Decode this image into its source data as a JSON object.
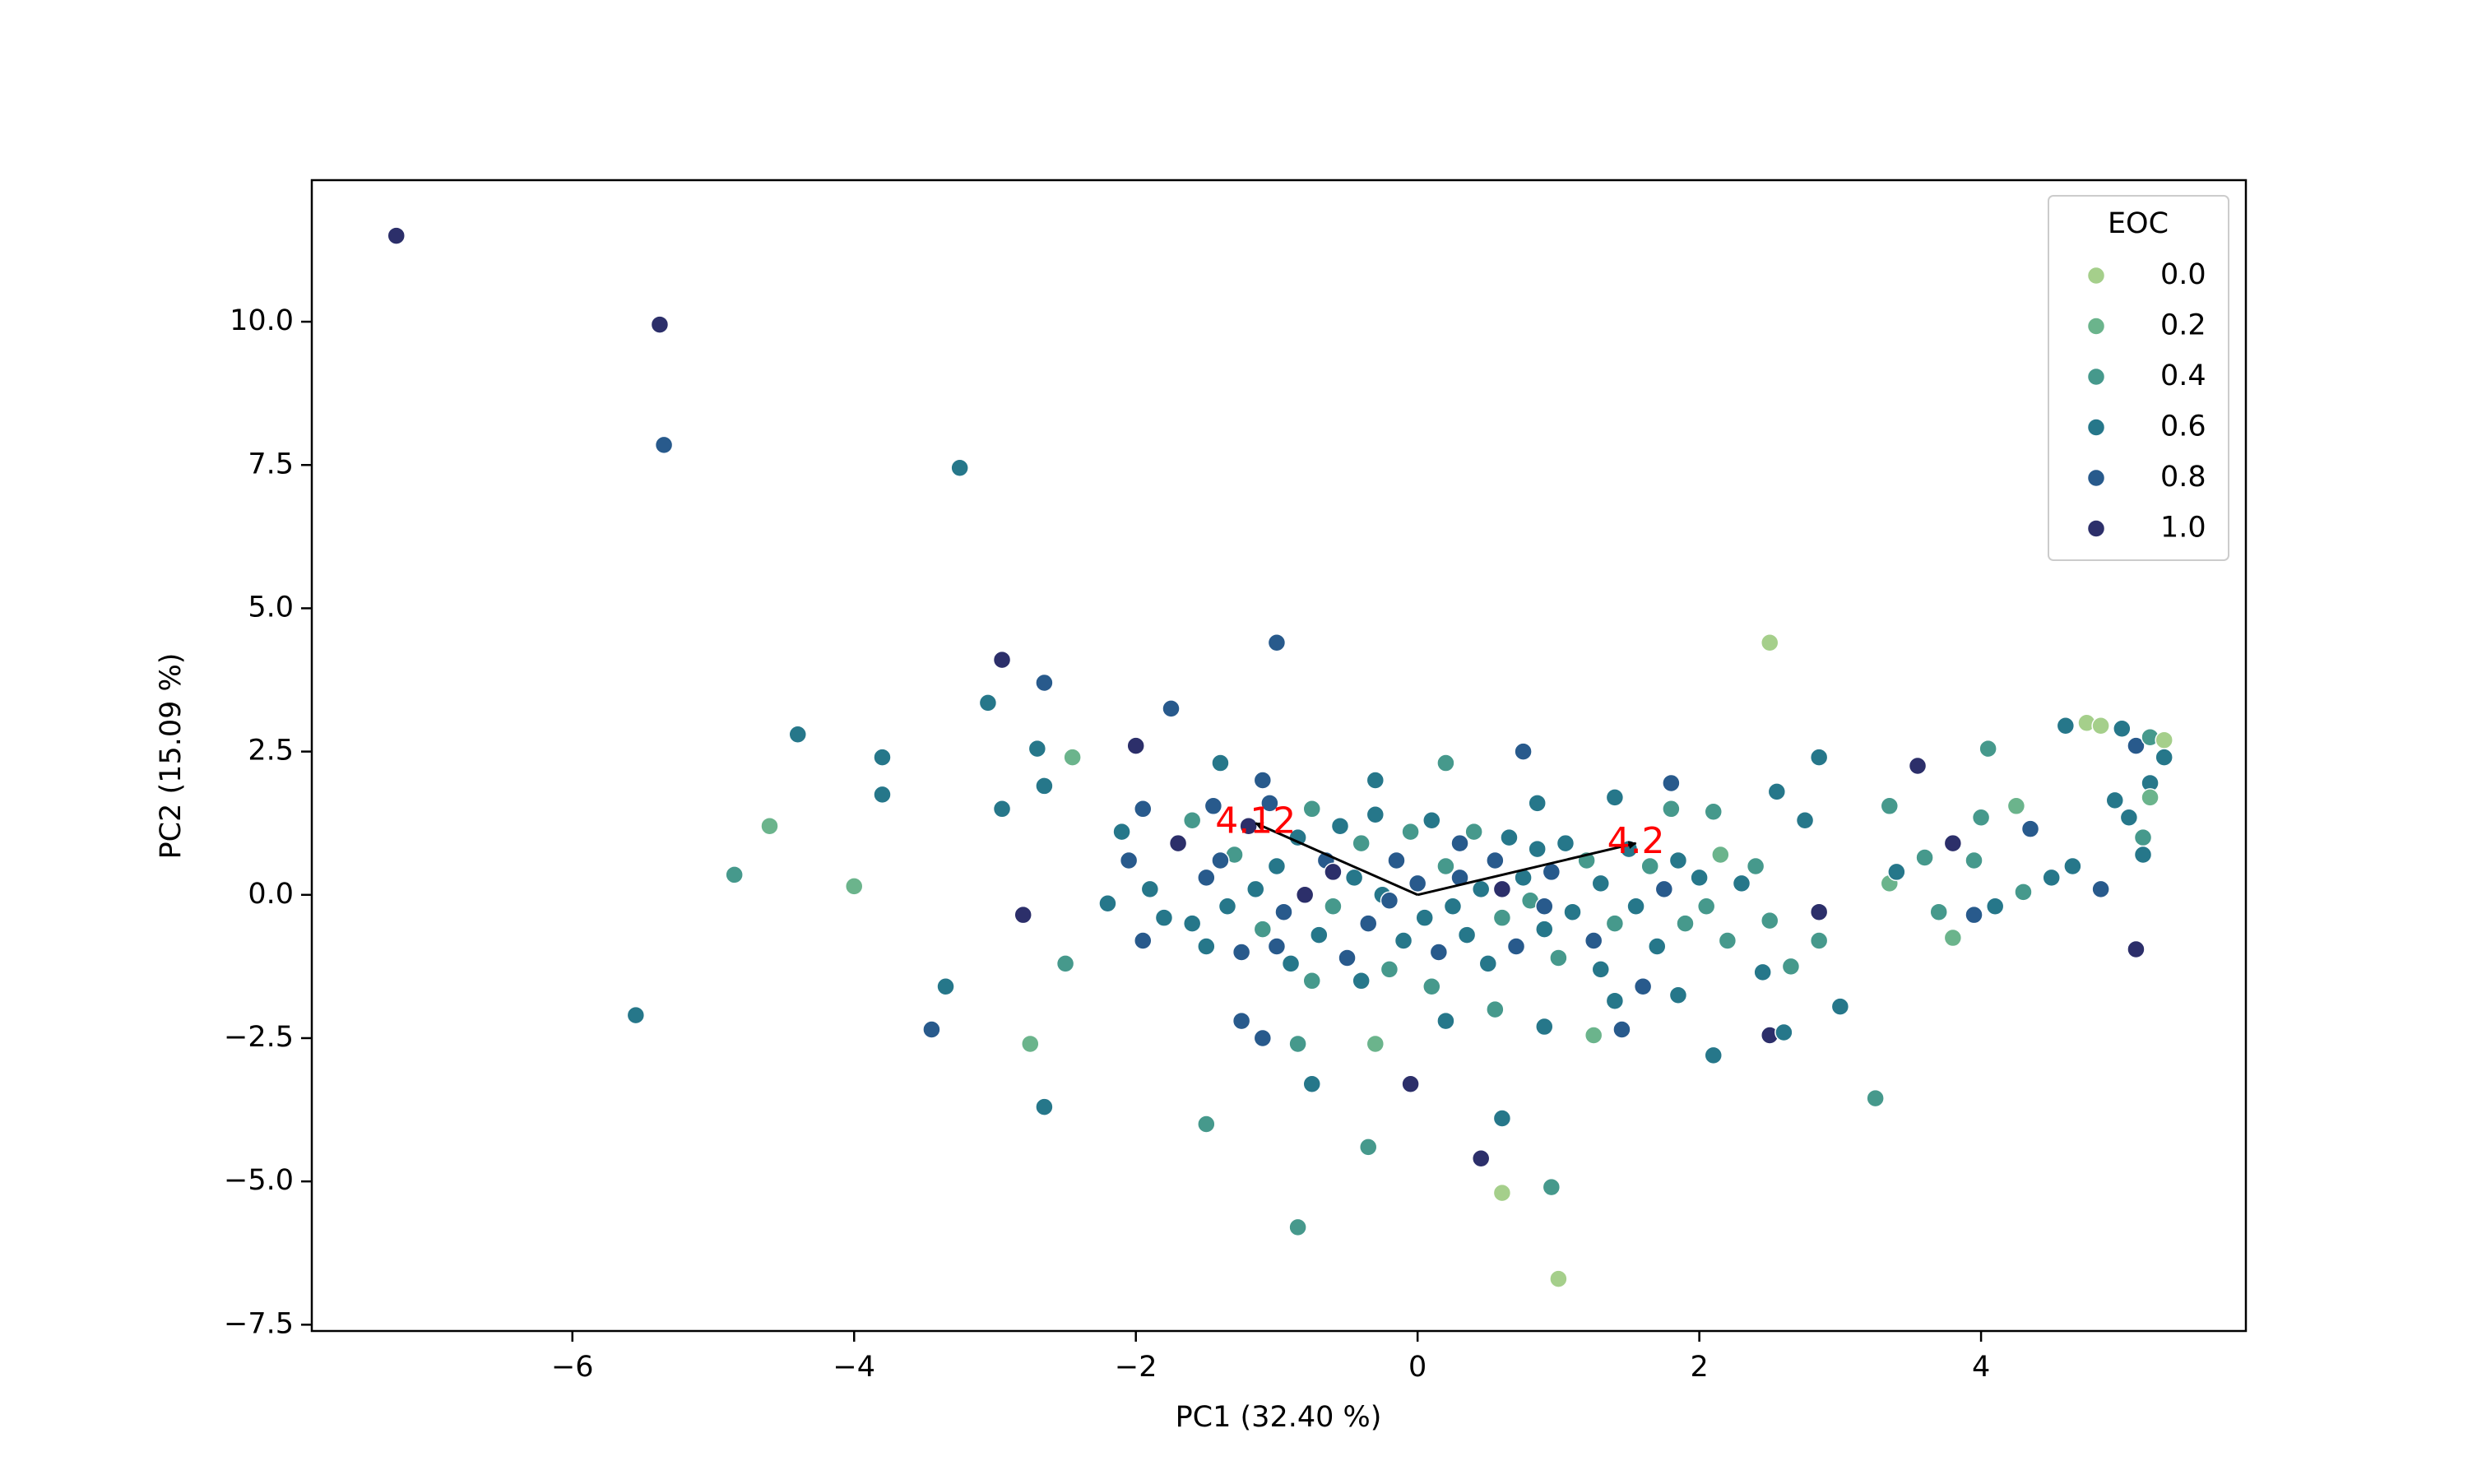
{
  "chart_data": {
    "type": "scatter",
    "x_label": "PC1 (32.40 %)",
    "y_label": "PC2 (15.09 %)",
    "xlim": [
      -7.85,
      5.88
    ],
    "ylim": [
      -7.61,
      12.47
    ],
    "xticks": [
      {
        "value": -6,
        "label": "−6"
      },
      {
        "value": -4,
        "label": "−4"
      },
      {
        "value": -2,
        "label": "−2"
      },
      0,
      2,
      4
    ],
    "yticks": [
      {
        "value": -7.5,
        "label": "−7.5"
      },
      {
        "value": -5,
        "label": "−5.0"
      },
      {
        "value": -2.5,
        "label": "−2.5"
      },
      {
        "value": 0,
        "label": "0.0"
      },
      2.5,
      {
        "value": 5,
        "label": "5.0"
      },
      7.5,
      {
        "value": 10,
        "label": "10.0"
      }
    ],
    "legend": {
      "title": "EOC",
      "position": "upper right",
      "items": [
        {
          "value": 0,
          "label": "0.0",
          "color": "#a5cf8b"
        },
        {
          "value": 0.2,
          "label": "0.2",
          "color": "#6bb48c"
        },
        {
          "value": 0.4,
          "label": "0.4",
          "color": "#46998c"
        },
        {
          "value": 0.6,
          "label": "0.6",
          "color": "#26778a"
        },
        {
          "value": 0.8,
          "label": "0.8",
          "color": "#285a8c"
        },
        {
          "value": 1,
          "label": "1.0",
          "color": "#2c2f6a"
        }
      ]
    },
    "x": [
      -7.25,
      -5.38,
      -5.35,
      -3.25,
      -4.6,
      -4.85,
      -4.0,
      -4.4,
      -3.8,
      -3.8,
      -5.55,
      -3.45,
      -3.35,
      -2.75,
      -2.65,
      -2.5,
      -2.95,
      -3.05,
      -2.65,
      -2.7,
      -2.45,
      -2.95,
      -2.65,
      -2.8,
      -2.2,
      -2.0,
      -1.75,
      -1.0,
      -1.5,
      -0.85,
      -0.35,
      -0.75,
      -0.85,
      -0.3,
      -0.05,
      0.45,
      0.6,
      0.95,
      1.0,
      0.6,
      2.5,
      0.75,
      0.2,
      1.4,
      1.8,
      1.8,
      2.1,
      2.55,
      2.75,
      2.85,
      3.35,
      3.55,
      4.05,
      4.0,
      4.25,
      3.8,
      3.6,
      3.35,
      3.4,
      3.95,
      4.35,
      4.65,
      4.85,
      4.5,
      4.3,
      4.1,
      3.95,
      3.7,
      3.8,
      3.25,
      3.0,
      2.85,
      2.65,
      2.5,
      2.45,
      2.5,
      2.6,
      2.85,
      2.1,
      1.45,
      1.4,
      1.25,
      4.75,
      4.85,
      5.0,
      5.1,
      5.2,
      5.3,
      5.3,
      5.2,
      5.2,
      5.15,
      5.15,
      5.05,
      4.95,
      5.1,
      4.6,
      -2.05,
      -2.1,
      -1.95,
      -1.9,
      -1.95,
      -1.8,
      -1.7,
      -1.6,
      -1.5,
      -1.5,
      -1.45,
      -1.35,
      -1.3,
      -1.25,
      -1.2,
      -1.15,
      -1.1,
      -1.05,
      -1.0,
      -0.95,
      -0.9,
      -0.85,
      -0.8,
      -0.75,
      -0.7,
      -0.65,
      -0.6,
      -0.55,
      -0.5,
      -0.45,
      -0.4,
      -0.35,
      -0.3,
      -0.25,
      -0.2,
      -0.15,
      -0.1,
      -0.05,
      0.0,
      0.05,
      0.1,
      0.15,
      0.2,
      0.25,
      0.3,
      0.35,
      0.4,
      0.45,
      0.5,
      0.55,
      0.6,
      0.65,
      0.7,
      0.75,
      0.8,
      0.85,
      0.9,
      0.95,
      1.0,
      1.05,
      1.1,
      1.2,
      1.25,
      1.3,
      1.4,
      1.5,
      1.55,
      1.65,
      1.7,
      1.75,
      1.85,
      1.9,
      2.0,
      2.05,
      2.15,
      2.2,
      2.3,
      2.4,
      -1.6,
      -1.4,
      -0.2,
      0.3,
      0.6,
      -0.6,
      -1.0,
      0.9,
      1.3,
      -0.4,
      0.1,
      -1.25,
      -1.1,
      -0.75,
      0.2,
      0.55,
      0.9,
      1.6,
      1.85,
      -0.3,
      -1.1,
      -1.4,
      0.85
    ],
    "y": [
      11.5,
      9.95,
      7.85,
      7.45,
      1.2,
      0.35,
      0.15,
      2.8,
      2.4,
      1.75,
      -2.1,
      -2.35,
      -1.6,
      -2.6,
      -3.7,
      -1.2,
      4.1,
      3.35,
      3.7,
      2.55,
      2.4,
      1.5,
      1.9,
      -0.35,
      -0.15,
      2.6,
      3.25,
      4.4,
      -4.0,
      -5.8,
      -4.4,
      -3.3,
      -2.6,
      -2.6,
      -3.3,
      -4.6,
      -5.2,
      -5.1,
      -6.7,
      -3.9,
      4.4,
      2.5,
      2.3,
      1.7,
      1.5,
      1.95,
      1.45,
      1.8,
      1.3,
      2.4,
      1.55,
      2.25,
      2.55,
      1.35,
      1.55,
      0.9,
      0.65,
      0.2,
      0.4,
      0.6,
      1.15,
      0.5,
      0.1,
      0.3,
      0.05,
      -0.2,
      -0.35,
      -0.3,
      -0.75,
      -3.55,
      -1.95,
      -0.3,
      -1.25,
      -0.45,
      -1.35,
      -2.45,
      -2.4,
      -0.8,
      -2.8,
      -2.35,
      -1.85,
      -2.45,
      3.0,
      2.95,
      2.9,
      2.6,
      2.75,
      2.7,
      2.4,
      1.95,
      1.7,
      1.0,
      0.7,
      1.35,
      1.65,
      -0.95,
      2.95,
      0.6,
      1.1,
      1.5,
      0.1,
      -0.8,
      -0.4,
      0.9,
      1.3,
      0.3,
      -0.9,
      1.55,
      -0.2,
      0.7,
      -1.0,
      1.2,
      0.1,
      -0.6,
      1.6,
      0.5,
      -0.3,
      -1.2,
      1.0,
      0.0,
      1.5,
      -0.7,
      0.6,
      -0.2,
      1.2,
      -1.1,
      0.3,
      0.9,
      -0.5,
      1.4,
      0.0,
      -1.3,
      0.6,
      -0.8,
      1.1,
      0.2,
      -0.4,
      1.3,
      -1.0,
      0.5,
      -0.2,
      0.9,
      -0.7,
      1.1,
      0.1,
      -1.2,
      0.6,
      -0.4,
      1.0,
      -0.9,
      0.3,
      -0.1,
      0.8,
      -0.6,
      0.4,
      -1.1,
      0.9,
      -0.3,
      0.6,
      -0.8,
      0.2,
      -0.5,
      0.8,
      -0.2,
      0.5,
      -0.9,
      0.1,
      0.6,
      -0.5,
      0.3,
      -0.2,
      0.7,
      -0.8,
      0.2,
      0.5,
      -0.5,
      0.6,
      -0.1,
      0.3,
      0.1,
      0.4,
      -0.9,
      -0.2,
      -1.3,
      -1.5,
      -1.6,
      -2.2,
      -2.5,
      -1.5,
      -2.2,
      -2.0,
      -2.3,
      -1.6,
      -1.75,
      2.0,
      2.0,
      2.3,
      1.6
    ],
    "hue": [
      1,
      1,
      0.8,
      0.6,
      0.2,
      0.4,
      0.2,
      0.6,
      0.6,
      0.6,
      0.6,
      0.8,
      0.6,
      0.2,
      0.6,
      0.4,
      1,
      0.6,
      0.8,
      0.6,
      0.2,
      0.6,
      0.6,
      1,
      0.6,
      1,
      0.8,
      0.8,
      0.4,
      0.4,
      0.4,
      0.6,
      0.4,
      0.2,
      1,
      1,
      0,
      0.4,
      0,
      0.6,
      0,
      0.8,
      0.4,
      0.6,
      0.4,
      0.8,
      0.4,
      0.6,
      0.6,
      0.6,
      0.4,
      1,
      0.4,
      0.4,
      0.2,
      1,
      0.4,
      0.2,
      0.6,
      0.4,
      0.8,
      0.6,
      0.8,
      0.6,
      0.4,
      0.6,
      0.8,
      0.4,
      0.2,
      0.4,
      0.6,
      1,
      0.4,
      0.4,
      0.6,
      1,
      0.6,
      0.4,
      0.6,
      0.8,
      0.6,
      0.2,
      0,
      0,
      0.6,
      0.8,
      0.4,
      0,
      0.6,
      0.6,
      0.2,
      0.4,
      0.6,
      0.6,
      0.6,
      1,
      0.6,
      0.8,
      0.6,
      0.8,
      0.6,
      0.8,
      0.6,
      1,
      0.4,
      0.8,
      0.6,
      0.8,
      0.6,
      0.4,
      0.8,
      1,
      0.6,
      0.4,
      0.8,
      0.6,
      0.8,
      0.6,
      0.6,
      1,
      0.4,
      0.6,
      0.8,
      0.4,
      0.6,
      0.8,
      0.6,
      0.4,
      0.8,
      0.6,
      0.6,
      0.4,
      0.8,
      0.6,
      0.4,
      0.8,
      0.6,
      0.6,
      0.8,
      0.4,
      0.6,
      0.8,
      0.6,
      0.4,
      0.6,
      0.6,
      0.8,
      0.4,
      0.6,
      0.8,
      0.6,
      0.4,
      0.6,
      0.6,
      0.8,
      0.4,
      0.6,
      0.6,
      0.4,
      0.8,
      0.6,
      0.4,
      0.6,
      0.6,
      0.4,
      0.6,
      0.8,
      0.6,
      0.4,
      0.6,
      0.4,
      0.2,
      0.4,
      0.6,
      0.4,
      0.6,
      0.8,
      0.8,
      0.8,
      1,
      1,
      0.8,
      0.8,
      0.6,
      0.6,
      0.4,
      0.8,
      0.8,
      0.4,
      0.6,
      0.4,
      0.6,
      0.8,
      0.6,
      0.6,
      0.8,
      0.6,
      0.6
    ],
    "annotations": [
      {
        "x": -1.15,
        "y": 1.25,
        "label": "4.12",
        "color": "red"
      },
      {
        "x": 1.55,
        "y": 0.9,
        "label": "4.2",
        "color": "red"
      }
    ]
  }
}
